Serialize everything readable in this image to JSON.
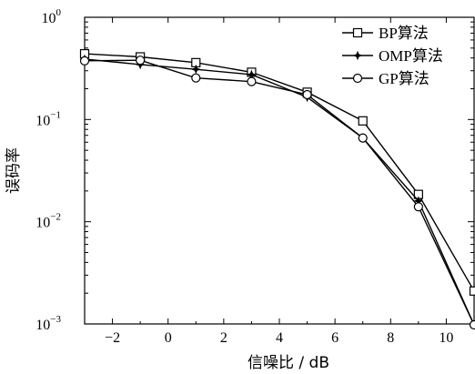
{
  "chart_data": {
    "type": "line",
    "xlabel": "信噪比 / dB",
    "ylabel": "误码率",
    "xlim": [
      -3,
      11
    ],
    "ylim": [
      0.001,
      1
    ],
    "yscale": "log",
    "xticks": [
      -2,
      0,
      2,
      4,
      6,
      8,
      10
    ],
    "xtick_labels": [
      "−2",
      "0",
      "2",
      "4",
      "6",
      "8",
      "10"
    ],
    "yticks": [
      1,
      0.1,
      0.01,
      0.001
    ],
    "ytick_labels": [
      {
        "base": "10",
        "exp": "0"
      },
      {
        "base": "10",
        "exp": "−1"
      },
      {
        "base": "10",
        "exp": "−2"
      },
      {
        "base": "10",
        "exp": "−3"
      }
    ],
    "legend_position": "top-right",
    "series": [
      {
        "name": "BP算法",
        "marker": "square",
        "x": [
          -3,
          -1,
          1,
          3,
          5,
          7,
          9,
          11
        ],
        "y": [
          0.44,
          0.41,
          0.36,
          0.29,
          0.185,
          0.097,
          0.0185,
          0.0021
        ]
      },
      {
        "name": "OMP算法",
        "marker": "star",
        "x": [
          -3,
          -1,
          1,
          3,
          5,
          7,
          9,
          11
        ],
        "y": [
          0.39,
          0.345,
          0.31,
          0.275,
          0.165,
          0.066,
          0.016,
          0.00098
        ]
      },
      {
        "name": "GP算法",
        "marker": "circle",
        "x": [
          -3,
          -1,
          1,
          3,
          5,
          7,
          9,
          11
        ],
        "y": [
          0.375,
          0.38,
          0.255,
          0.235,
          0.175,
          0.066,
          0.014,
          0.00098
        ]
      }
    ]
  }
}
